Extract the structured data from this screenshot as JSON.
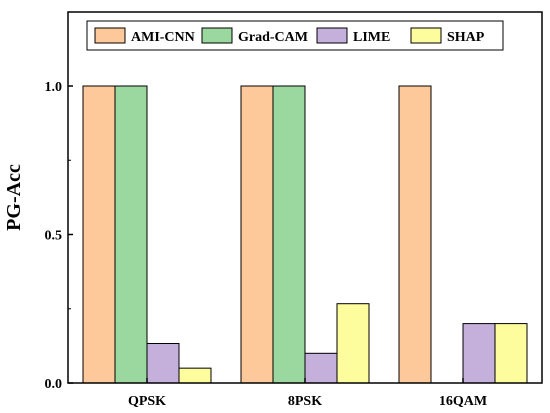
{
  "chart_data": {
    "type": "bar",
    "title": "",
    "xlabel": "",
    "ylabel": "PG-Acc",
    "ylim": [
      0,
      1.0
    ],
    "yticks": [
      "0.0",
      "0.5",
      "1.0"
    ],
    "categories": [
      "QPSK",
      "8PSK",
      "16QAM"
    ],
    "series": [
      {
        "name": "AMI-CNN",
        "color": "#FDC89A",
        "values": [
          1.0,
          1.0,
          1.0
        ]
      },
      {
        "name": "Grad-CAM",
        "color": "#9BD8A0",
        "values": [
          1.0,
          1.0,
          0.0
        ]
      },
      {
        "name": "LIME",
        "color": "#C4B0DA",
        "values": [
          0.133,
          0.1,
          0.2
        ]
      },
      {
        "name": "SHAP",
        "color": "#FDFD9E",
        "values": [
          0.05,
          0.267,
          0.2
        ]
      }
    ],
    "legend": "top",
    "grid": false
  }
}
